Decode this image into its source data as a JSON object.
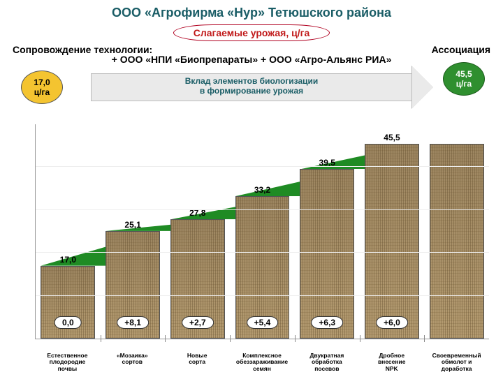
{
  "title": "ООО «Агрофирма «Нур» Тетюшского района",
  "title_color": "#1a5d66",
  "pill": {
    "text": "Слагаемые урожая, ц/га",
    "text_color": "#c01818",
    "border_color": "#b00020",
    "bg": "#ffffff"
  },
  "subhead_left": "Сопровождение технологии:",
  "subhead_right": "Ассоциация",
  "subhead2": "+ ООО «НПИ «Биопрепараты» + ООО «Агро-Альянс РИА»",
  "arrow": {
    "line1": "Вклад элементов биологизации",
    "line2": "в формирование урожая",
    "text_color": "#1a5d66",
    "bg": "#eaeaea",
    "border": "#bbbbbb"
  },
  "start_badge": {
    "value": "17,0",
    "unit": "ц/га",
    "bg": "#f4c430",
    "border": "#555555"
  },
  "end_badge": {
    "value": "45,5",
    "unit": "ц/га",
    "bg": "#2f8f2f",
    "text": "#ffffff",
    "border": "#1d5d1d"
  },
  "chart": {
    "type": "waterfall-bar",
    "ylim": [
      0,
      50
    ],
    "ytick_step": 10,
    "categories": [
      "Естественное\nплодородие\nпочвы",
      "«Мозаика»\nсортов",
      "Новые\nсорта",
      "Комплексное\nобеззараживание\nсемян",
      "Двукратная\nобработка\nпосевов",
      "Дробное\nвнесение\nNPK",
      "Своевременный\nобмолот и\nдоработка"
    ],
    "cum_values": [
      17.0,
      25.1,
      27.8,
      33.2,
      39.5,
      45.5,
      45.5
    ],
    "cum_labels": [
      "17,0",
      "25,1",
      "27,8",
      "33,2",
      "39,5",
      "45,5",
      ""
    ],
    "delta_labels": [
      "0,0",
      "+8,1",
      "+2,7",
      "+5,4",
      "+6,3",
      "+6,0",
      ""
    ],
    "bar_fill": "#a38c6a",
    "wedge_fill": "#1f8b24",
    "grid_color": "#eeeeee",
    "axis_color": "#999999",
    "cap_fontsize": 12,
    "oval_bg": "#ffffff",
    "oval_border": "#333333",
    "background_color": "#ffffff"
  }
}
